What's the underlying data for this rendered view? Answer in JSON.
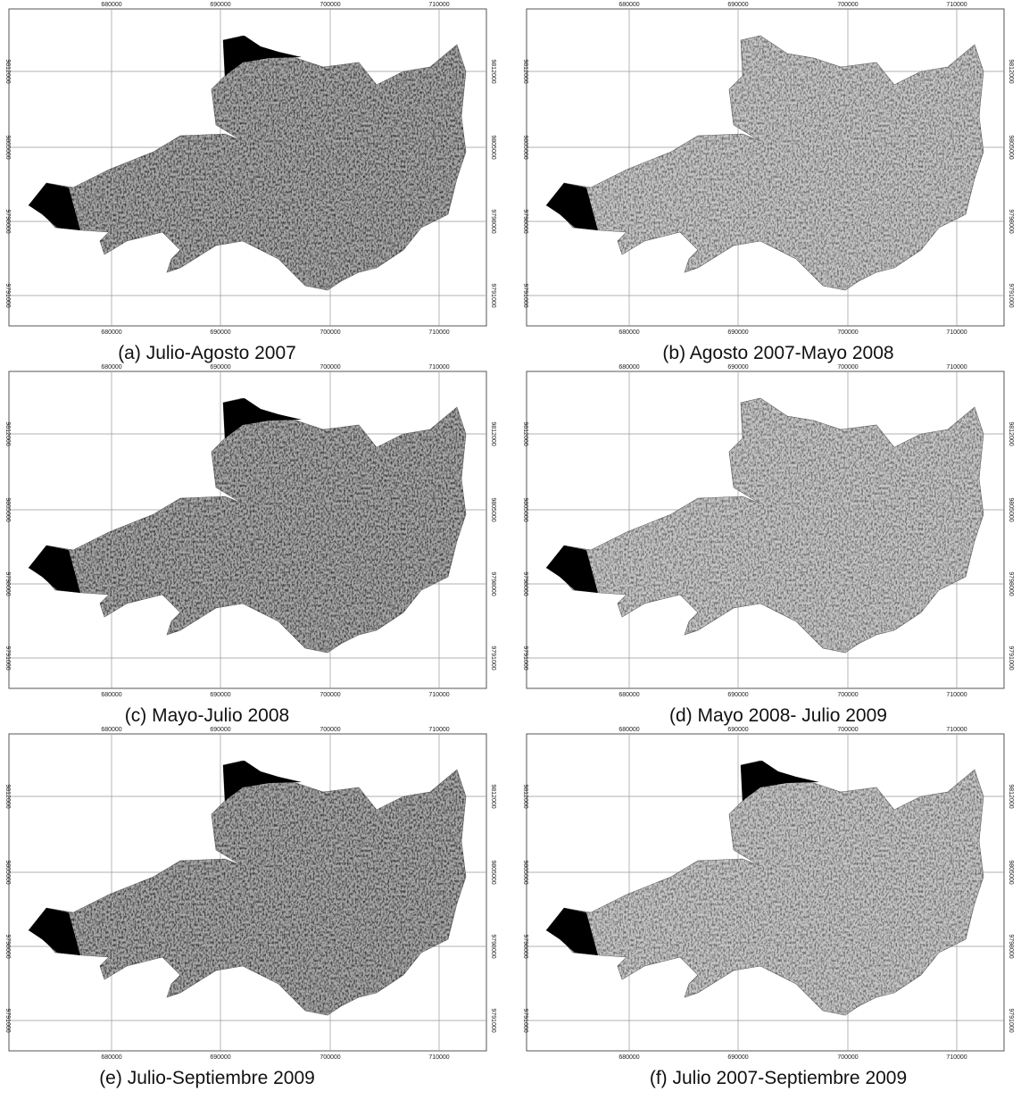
{
  "eastings": [
    "680000",
    "690000",
    "700000",
    "710000"
  ],
  "northings": [
    "9812000",
    "9805000",
    "9798000",
    "9791000"
  ],
  "panels": [
    {
      "caption": "(a) Julio-Agosto 2007"
    },
    {
      "caption": "(b) Agosto 2007-Mayo 2008"
    },
    {
      "caption": "(c) Mayo-Julio 2008"
    },
    {
      "caption": "(d) Mayo 2008- Julio 2009"
    },
    {
      "caption": "(e) Julio-Septiembre 2009"
    },
    {
      "caption": "(f) Julio 2007-Septiembre 2009"
    }
  ]
}
